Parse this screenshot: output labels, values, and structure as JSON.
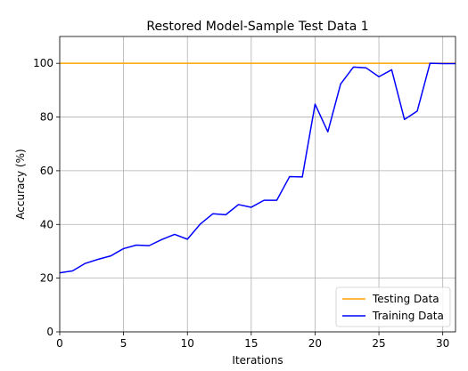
{
  "chart_data": {
    "type": "line",
    "title": "Restored Model-Sample Test Data 1",
    "xlabel": "Iterations",
    "ylabel": "Accuracy (%)",
    "xlim": [
      0,
      31
    ],
    "ylim": [
      0,
      110
    ],
    "x_ticks": [
      0,
      5,
      10,
      15,
      20,
      25,
      30
    ],
    "y_ticks": [
      0,
      20,
      40,
      60,
      80,
      100
    ],
    "grid": true,
    "legend_position": "lower-right",
    "series": [
      {
        "name": "Testing Data",
        "color": "#ffa500",
        "x": [
          0,
          31
        ],
        "values": [
          100,
          100
        ]
      },
      {
        "name": "Training Data",
        "color": "#0000ff",
        "x": [
          0,
          1,
          2,
          3,
          4,
          5,
          6,
          7,
          8,
          9,
          10,
          11,
          12,
          13,
          14,
          15,
          16,
          17,
          18,
          19,
          20,
          21,
          22,
          23,
          24,
          25,
          26,
          27,
          28,
          29,
          30,
          31
        ],
        "values": [
          22,
          22.7,
          25.5,
          27,
          28.3,
          31,
          32.3,
          32.1,
          34.4,
          36.3,
          34.5,
          40.1,
          44,
          43.6,
          47.4,
          46.4,
          49,
          49,
          57.8,
          57.7,
          84.8,
          74.5,
          92.3,
          98.6,
          98.3,
          95,
          97.6,
          79.1,
          82.2,
          100,
          99.9,
          99.9
        ]
      }
    ]
  }
}
